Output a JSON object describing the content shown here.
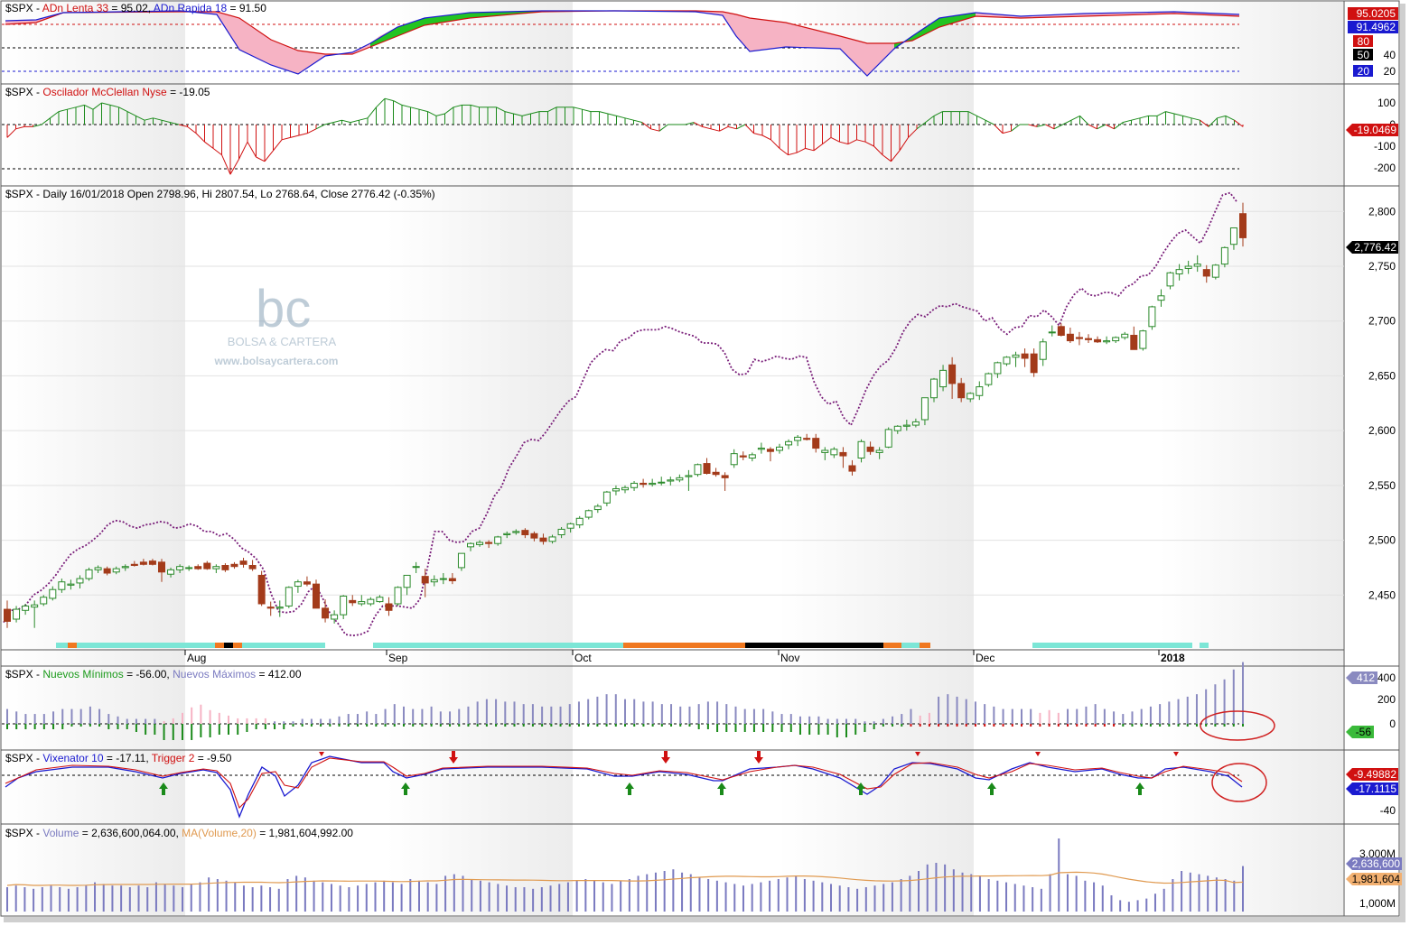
{
  "colors": {
    "up_candle": "#2a8a2a",
    "down_candle": "#a33b1a",
    "breadth_line": "#7a1f7a",
    "green": "#1a8a1a",
    "red": "#d01010",
    "blue": "#1a1ad0",
    "pink": "#f6b3c4",
    "nuevos_max": "#8a8ac0",
    "volume": "#7a7ac0",
    "volume_ma": "#e09a50",
    "cyan_band": "#7ce6d6",
    "orange_band": "#f07820",
    "annotation_circle": "#d02020"
  },
  "watermark": {
    "logo_text": "bc",
    "brand": "BOLSA & CARTERA",
    "url": "www.bolsaycartera.com"
  },
  "panels": {
    "adn": {
      "symbol": "$SPX - ",
      "name1": "ADn Lenta 33",
      "eq1": " = 95.02, ",
      "name2": "ADn Rapida 18",
      "eq2": " = 91.50",
      "tag1": "95.0205",
      "tag2": "91.4962",
      "tag3": "80",
      "tag4": "50",
      "tag5": "20",
      "tick_40": "40"
    },
    "mcclellan": {
      "symbol": "$SPX - ",
      "name": "Oscilador McClellan Nyse",
      "eq": " = -19.05",
      "tick_100": "100",
      "tick_0": "0",
      "tick_m100": "-100",
      "tick_m200": "-200",
      "tag": "-19.0469"
    },
    "price": {
      "header": "$SPX - Daily 16/01/2018 Open 2798.96, Hi 2807.54, Lo 2768.64, Close 2776.42 (-0.35%)",
      "last_tag": "2,776.42"
    },
    "nuevos": {
      "symbol": "$SPX - ",
      "name1": "Nuevos Mínimos",
      "eq1": " = -56.00, ",
      "name2": "Nuevos Máximos",
      "eq2": " = 412.00",
      "tick_400": "400",
      "tick_200": "200",
      "tick_0": "0",
      "tag_max": "412",
      "tag_min": "-56"
    },
    "vixenator": {
      "symbol": "$SPX - ",
      "name1": "Vixenator 10",
      "eq1": " = -17.11, ",
      "name2": "Trigger 2",
      "eq2": " = -9.50",
      "tag1": "-9.49882",
      "tag2": "-17.1115",
      "tick_m40": "-40"
    },
    "volume": {
      "symbol": "$SPX - ",
      "name1": "Volume",
      "eq1": " = 2,636,600,064.00, ",
      "name2": "MA(Volume,20)",
      "eq2": " = 1,981,604,992.00",
      "tick_3000": "3,000M",
      "tick_1000": "1,000M",
      "tag_vol": "2,636,600",
      "tag_ma": "1,981,604"
    }
  },
  "chart_data": {
    "type": "candlestick",
    "ylim": [
      2400,
      2820
    ],
    "y_ticks": [
      "2,450",
      "2,500",
      "2,550",
      "2,600",
      "2,650",
      "2,700",
      "2,750",
      "2,800"
    ],
    "x_month_labels": [
      "Aug",
      "Sep",
      "Oct",
      "Nov",
      "Dec",
      "2018"
    ],
    "candles_ohlc": [
      [
        2437,
        2445,
        2420,
        2426
      ],
      [
        2428,
        2440,
        2425,
        2437
      ],
      [
        2436,
        2442,
        2432,
        2440
      ],
      [
        2439,
        2445,
        2420,
        2441
      ],
      [
        2442,
        2450,
        2440,
        2448
      ],
      [
        2447,
        2458,
        2445,
        2455
      ],
      [
        2455,
        2465,
        2452,
        2462
      ],
      [
        2459,
        2464,
        2455,
        2460
      ],
      [
        2461,
        2468,
        2456,
        2465
      ],
      [
        2465,
        2475,
        2463,
        2473
      ],
      [
        2473,
        2477,
        2470,
        2475
      ],
      [
        2474,
        2476,
        2468,
        2470
      ],
      [
        2471,
        2476,
        2469,
        2474
      ],
      [
        2475,
        2478,
        2472,
        2476
      ],
      [
        2478,
        2481,
        2476,
        2477
      ],
      [
        2480,
        2483,
        2477,
        2478
      ],
      [
        2481,
        2483,
        2477,
        2478
      ],
      [
        2480,
        2483,
        2462,
        2471
      ],
      [
        2469,
        2475,
        2466,
        2473
      ],
      [
        2473,
        2478,
        2470,
        2476
      ],
      [
        2475,
        2477,
        2472,
        2475
      ],
      [
        2476,
        2478,
        2473,
        2474
      ],
      [
        2479,
        2481,
        2473,
        2474
      ],
      [
        2474,
        2478,
        2470,
        2476
      ],
      [
        2477,
        2479,
        2471,
        2473
      ],
      [
        2478,
        2480,
        2474,
        2476
      ],
      [
        2481,
        2484,
        2475,
        2478
      ],
      [
        2477,
        2482,
        2472,
        2474
      ],
      [
        2468,
        2472,
        2440,
        2442
      ],
      [
        2439,
        2444,
        2431,
        2438
      ],
      [
        2438,
        2445,
        2430,
        2439
      ],
      [
        2440,
        2458,
        2438,
        2457
      ],
      [
        2458,
        2464,
        2452,
        2462
      ],
      [
        2462,
        2467,
        2458,
        2460
      ],
      [
        2460,
        2464,
        2440,
        2438
      ],
      [
        2438,
        2446,
        2425,
        2429
      ],
      [
        2428,
        2436,
        2424,
        2432
      ],
      [
        2432,
        2450,
        2428,
        2449
      ],
      [
        2445,
        2450,
        2440,
        2443
      ],
      [
        2442,
        2450,
        2440,
        2444
      ],
      [
        2442,
        2448,
        2440,
        2446
      ],
      [
        2444,
        2450,
        2443,
        2448
      ],
      [
        2442,
        2448,
        2431,
        2436
      ],
      [
        2442,
        2458,
        2440,
        2457
      ],
      [
        2457,
        2468,
        2450,
        2468
      ],
      [
        2476,
        2480,
        2470,
        2476
      ],
      [
        2467,
        2474,
        2448,
        2461
      ],
      [
        2462,
        2468,
        2458,
        2464
      ],
      [
        2465,
        2470,
        2460,
        2465
      ],
      [
        2465,
        2470,
        2460,
        2463
      ],
      [
        2475,
        2488,
        2472,
        2488
      ],
      [
        2494,
        2498,
        2490,
        2497
      ],
      [
        2496,
        2500,
        2494,
        2498
      ],
      [
        2498,
        2500,
        2493,
        2497
      ],
      [
        2497,
        2504,
        2495,
        2503
      ],
      [
        2505,
        2508,
        2502,
        2506
      ],
      [
        2507,
        2510,
        2505,
        2508
      ],
      [
        2509,
        2511,
        2502,
        2505
      ],
      [
        2506,
        2508,
        2499,
        2502
      ],
      [
        2502,
        2506,
        2496,
        2499
      ],
      [
        2499,
        2505,
        2497,
        2503
      ],
      [
        2505,
        2512,
        2502,
        2510
      ],
      [
        2511,
        2516,
        2507,
        2515
      ],
      [
        2514,
        2522,
        2511,
        2520
      ],
      [
        2521,
        2528,
        2519,
        2527
      ],
      [
        2528,
        2533,
        2525,
        2531
      ],
      [
        2534,
        2545,
        2531,
        2544
      ],
      [
        2545,
        2550,
        2541,
        2547
      ],
      [
        2546,
        2550,
        2543,
        2548
      ],
      [
        2548,
        2554,
        2545,
        2552
      ],
      [
        2552,
        2556,
        2548,
        2551
      ],
      [
        2551,
        2556,
        2549,
        2552
      ],
      [
        2553,
        2558,
        2550,
        2553
      ],
      [
        2554,
        2558,
        2550,
        2555
      ],
      [
        2555,
        2560,
        2553,
        2557
      ],
      [
        2558,
        2564,
        2545,
        2559
      ],
      [
        2560,
        2570,
        2558,
        2569
      ],
      [
        2570,
        2575,
        2560,
        2561
      ],
      [
        2562,
        2566,
        2558,
        2560
      ],
      [
        2559,
        2562,
        2545,
        2557
      ],
      [
        2569,
        2583,
        2566,
        2579
      ],
      [
        2577,
        2581,
        2573,
        2576
      ],
      [
        2575,
        2580,
        2572,
        2578
      ],
      [
        2583,
        2589,
        2579,
        2584
      ],
      [
        2583,
        2585,
        2572,
        2581
      ],
      [
        2582,
        2588,
        2579,
        2585
      ],
      [
        2587,
        2592,
        2583,
        2590
      ],
      [
        2591,
        2596,
        2586,
        2594
      ],
      [
        2593,
        2597,
        2591,
        2592
      ],
      [
        2593,
        2597,
        2580,
        2584
      ],
      [
        2580,
        2585,
        2573,
        2582
      ],
      [
        2578,
        2585,
        2575,
        2583
      ],
      [
        2580,
        2585,
        2566,
        2577
      ],
      [
        2568,
        2573,
        2559,
        2563
      ],
      [
        2575,
        2592,
        2571,
        2590
      ],
      [
        2585,
        2590,
        2578,
        2581
      ],
      [
        2580,
        2585,
        2574,
        2582
      ],
      [
        2585,
        2603,
        2584,
        2601
      ],
      [
        2600,
        2605,
        2597,
        2604
      ],
      [
        2604,
        2610,
        2600,
        2605
      ],
      [
        2605,
        2611,
        2603,
        2608
      ],
      [
        2610,
        2630,
        2605,
        2630
      ],
      [
        2630,
        2648,
        2626,
        2647
      ],
      [
        2640,
        2660,
        2636,
        2655
      ],
      [
        2660,
        2667,
        2629,
        2643
      ],
      [
        2643,
        2648,
        2626,
        2630
      ],
      [
        2629,
        2635,
        2626,
        2634
      ],
      [
        2632,
        2645,
        2628,
        2640
      ],
      [
        2642,
        2653,
        2640,
        2652
      ],
      [
        2652,
        2663,
        2648,
        2662
      ],
      [
        2661,
        2668,
        2659,
        2667
      ],
      [
        2667,
        2672,
        2658,
        2669
      ],
      [
        2670,
        2675,
        2658,
        2666
      ],
      [
        2670,
        2675,
        2649,
        2653
      ],
      [
        2665,
        2684,
        2659,
        2681
      ],
      [
        2690,
        2696,
        2686,
        2690
      ],
      [
        2695,
        2698,
        2686,
        2687
      ],
      [
        2688,
        2694,
        2680,
        2682
      ],
      [
        2685,
        2690,
        2678,
        2684
      ],
      [
        2684,
        2688,
        2680,
        2683
      ],
      [
        2683,
        2686,
        2680,
        2681
      ],
      [
        2681,
        2686,
        2679,
        2682
      ],
      [
        2682,
        2686,
        2680,
        2685
      ],
      [
        2685,
        2690,
        2683,
        2688
      ],
      [
        2687,
        2695,
        2674,
        2674
      ],
      [
        2675,
        2692,
        2673,
        2691
      ],
      [
        2695,
        2714,
        2692,
        2713
      ],
      [
        2719,
        2729,
        2713,
        2723
      ],
      [
        2732,
        2745,
        2729,
        2744
      ],
      [
        2743,
        2752,
        2737,
        2747
      ],
      [
        2748,
        2755,
        2743,
        2750
      ],
      [
        2750,
        2760,
        2745,
        2752
      ],
      [
        2747,
        2751,
        2735,
        2741
      ],
      [
        2740,
        2752,
        2738,
        2751
      ],
      [
        2752,
        2768,
        2749,
        2767
      ],
      [
        2770,
        2785,
        2765,
        2785
      ],
      [
        2798,
        2808,
        2768,
        2776
      ]
    ],
    "breadth_line": [
      2425,
      2436,
      2437,
      2441,
      2450,
      2454,
      2460,
      2468,
      2478,
      2487,
      2492,
      2495,
      2500,
      2506,
      2514,
      2518,
      2517,
      2513,
      2511,
      2514,
      2515,
      2517,
      2516,
      2511,
      2512,
      2515,
      2513,
      2508,
      2508,
      2504,
      2506,
      2501,
      2493,
      2489,
      2483,
      2473,
      2451,
      2435,
      2434,
      2435,
      2441,
      2453,
      2459,
      2446,
      2432,
      2424,
      2414,
      2413,
      2414,
      2417,
      2431,
      2440,
      2440,
      2440,
      2439,
      2438,
      2446,
      2474,
      2508,
      2508,
      2500,
      2498,
      2499,
      2508,
      2511,
      2524,
      2540,
      2549,
      2566,
      2577,
      2589,
      2592,
      2591,
      2599,
      2609,
      2619,
      2627,
      2631,
      2647,
      2662,
      2669,
      2674,
      2673,
      2682,
      2684,
      2690,
      2692,
      2692,
      2692,
      2695,
      2693,
      2690,
      2688,
      2686,
      2680,
      2680,
      2679,
      2671,
      2656,
      2651,
      2652,
      2665,
      2663,
      2665,
      2668,
      2666,
      2665,
      2668,
      2667,
      2645,
      2631,
      2624,
      2627,
      2612,
      2605,
      2620,
      2637,
      2650,
      2659,
      2664,
      2675,
      2690,
      2700,
      2706,
      2704,
      2710,
      2714,
      2713,
      2716,
      2713,
      2711,
      2709,
      2700,
      2703,
      2693,
      2688,
      2694,
      2695,
      2705,
      2704,
      2710,
      2704,
      2696,
      2713,
      2724,
      2730,
      2724,
      2723,
      2726,
      2726,
      2723,
      2731,
      2734,
      2741,
      2742,
      2750,
      2762,
      2772,
      2780,
      2783,
      2777,
      2771,
      2784,
      2800,
      2815,
      2817,
      2808
    ]
  }
}
